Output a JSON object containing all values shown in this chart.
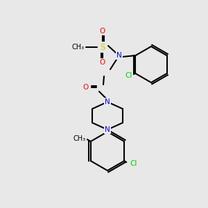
{
  "bg_color": "#e8e8e8",
  "bond_color": "#000000",
  "bond_lw": 1.5,
  "atom_colors": {
    "N": "#0000ff",
    "O": "#ff0000",
    "S": "#cccc00",
    "Cl": "#00cc00",
    "C": "#000000"
  },
  "font_size": 7.5,
  "label_font_size": 7.5
}
